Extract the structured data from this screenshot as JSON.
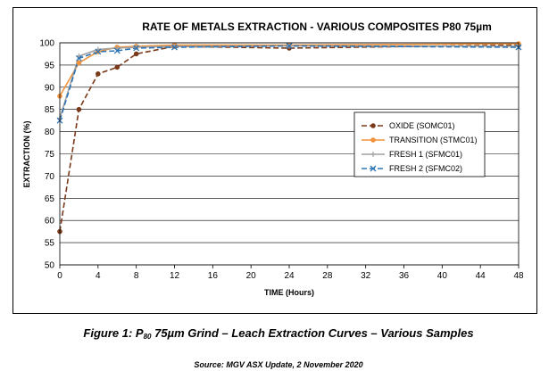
{
  "chart_data": {
    "type": "line",
    "title": "RATE OF METALS EXTRACTION - VARIOUS COMPOSITES P80 75µm",
    "xlabel": "TIME (Hours)",
    "ylabel": "EXTRACTION (%)",
    "xlim": [
      0,
      48
    ],
    "ylim": [
      50,
      100
    ],
    "xticks": [
      0,
      4,
      8,
      12,
      16,
      20,
      24,
      28,
      32,
      36,
      40,
      44,
      48
    ],
    "yticks": [
      50,
      55,
      60,
      65,
      70,
      75,
      80,
      85,
      90,
      95,
      100
    ],
    "grid": "horizontal",
    "legend_position": "right",
    "series": [
      {
        "name": "OXIDE (SOMC01)",
        "color": "#7a3a1a",
        "dash": "dashed",
        "marker": "dot",
        "x": [
          0,
          2,
          4,
          6,
          8,
          12,
          24,
          48
        ],
        "y": [
          57.5,
          85,
          93,
          94.5,
          97.5,
          99.2,
          98.8,
          99.5
        ]
      },
      {
        "name": "TRANSITION (STMC01)",
        "color": "#f0923a",
        "dash": "solid",
        "marker": "dot",
        "x": [
          0,
          2,
          4,
          6,
          8,
          12,
          24,
          48
        ],
        "y": [
          88,
          95.5,
          98,
          99,
          99.2,
          99.5,
          99.5,
          99.8
        ]
      },
      {
        "name": "FRESH 1 (SFMC01)",
        "color": "#a0a0a0",
        "dash": "solid",
        "marker": "plus",
        "x": [
          0,
          2,
          4,
          6,
          8,
          12,
          24,
          48
        ],
        "y": [
          83,
          97,
          98.5,
          98.8,
          99,
          99.2,
          99.3,
          99.2
        ]
      },
      {
        "name": "FRESH 2 (SFMC02)",
        "color": "#2e75b6",
        "dash": "dashed",
        "marker": "x",
        "x": [
          0,
          2,
          4,
          6,
          8,
          12,
          24,
          48
        ],
        "y": [
          82.5,
          96.5,
          98,
          98.2,
          98.8,
          99,
          99.3,
          99
        ]
      }
    ]
  },
  "caption": {
    "prefix": "Figure 1: P",
    "subscript": "80",
    "suffix": " 75µm Grind – Leach Extraction Curves – Various Samples"
  },
  "source": "Source: MGV ASX Update, 2 November 2020"
}
